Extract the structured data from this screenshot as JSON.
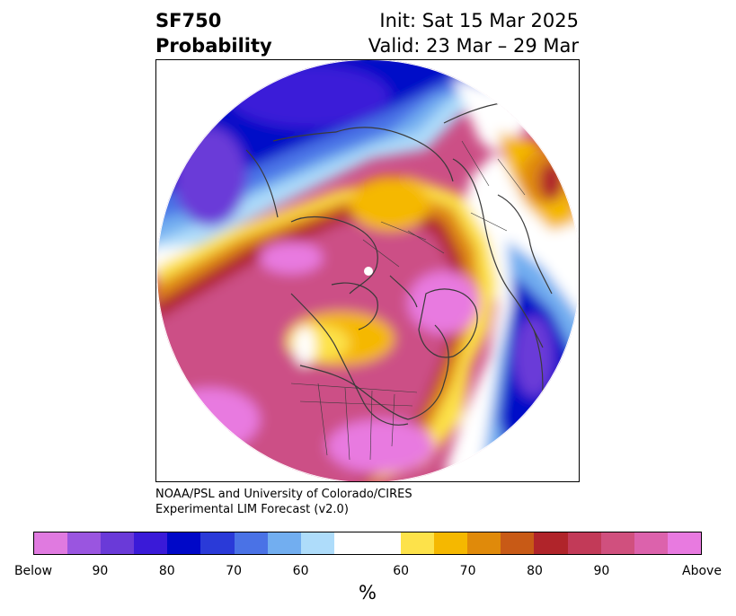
{
  "header": {
    "field_label": "SF750",
    "field_sublabel": "Probability",
    "init_text": "Init: Sat 15 Mar 2025",
    "valid_text": "Valid: 23 Mar – 29 Mar"
  },
  "credit": {
    "line1": "NOAA/PSL and University of Colorado/CIRES",
    "line2": "Experimental LIM Forecast (v2.0)"
  },
  "colorbar": {
    "unit": "%",
    "colors": [
      "#e07ae0",
      "#9a55e0",
      "#6a3ad8",
      "#3a1ad8",
      "#0008c8",
      "#2a3ad8",
      "#4a72e6",
      "#72aef0",
      "#aedcfa",
      "#ffffff",
      "#ffffff",
      "#fde24a",
      "#f5b800",
      "#e08a0a",
      "#c85a16",
      "#b0242a",
      "#c23a58",
      "#d0507e",
      "#dc62ac",
      "#e87ae0"
    ],
    "ticks": [
      {
        "label": "Below"
      },
      {
        "label": "90"
      },
      {
        "label": "80"
      },
      {
        "label": "70"
      },
      {
        "label": "60"
      },
      {
        "label": "60"
      },
      {
        "label": "70"
      },
      {
        "label": "80"
      },
      {
        "label": "90"
      },
      {
        "label": "Above"
      }
    ]
  }
}
